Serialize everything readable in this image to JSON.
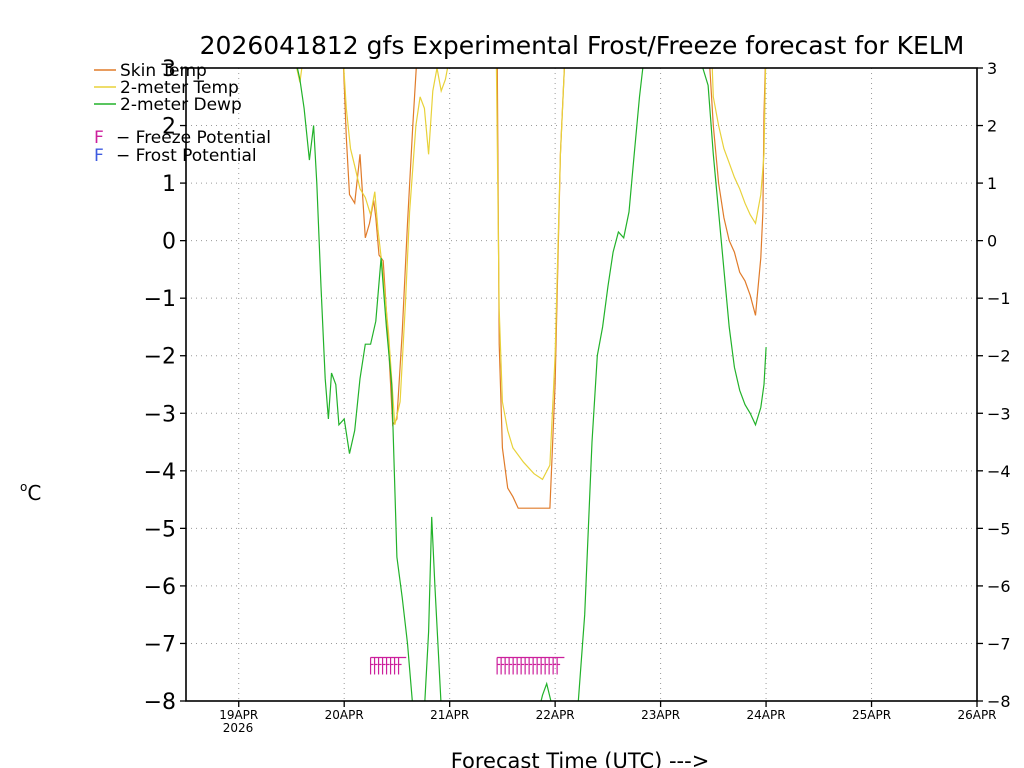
{
  "chart_data": {
    "type": "line",
    "title": "2026041812 gfs Experimental Frost/Freeze forecast for KELM",
    "xlabel": "Forecast Time (UTC) --->",
    "ylabel": "°C",
    "ylabel_superscript": "o",
    "ylabel_unit": "C",
    "ylim": [
      -8,
      3
    ],
    "xlim": [
      0,
      7.5
    ],
    "grid": true,
    "yticks": [
      3,
      2,
      1,
      0,
      -1,
      -2,
      -3,
      -4,
      -5,
      -6,
      -7,
      -8
    ],
    "ytick_labels": [
      "3",
      "2",
      "1",
      "0",
      "−1",
      "−2",
      "−3",
      "−4",
      "−5",
      "−6",
      "−7",
      "−8"
    ],
    "xticks": [
      0.5,
      1.5,
      2.5,
      3.5,
      4.5,
      5.5,
      6.5,
      7.5
    ],
    "xtick_labels": [
      "19APR",
      "20APR",
      "21APR",
      "22APR",
      "23APR",
      "24APR",
      "25APR",
      "26APR"
    ],
    "year_label": "2026",
    "series": [
      {
        "name": "Skin Temp",
        "color": "#e07b2a",
        "points": [
          [
            1.49,
            3.2
          ],
          [
            1.52,
            1.8
          ],
          [
            1.55,
            0.8
          ],
          [
            1.6,
            0.65
          ],
          [
            1.65,
            1.5
          ],
          [
            1.7,
            0.05
          ],
          [
            1.74,
            0.3
          ],
          [
            1.78,
            0.7
          ],
          [
            1.8,
            0.4
          ],
          [
            1.83,
            -0.25
          ],
          [
            1.87,
            -0.35
          ],
          [
            1.92,
            -1.8
          ],
          [
            1.96,
            -3.2
          ],
          [
            2.0,
            -3.1
          ],
          [
            2.05,
            -1.6
          ],
          [
            2.1,
            0.3
          ],
          [
            2.15,
            2.0
          ],
          [
            2.2,
            3.5
          ],
          [
            2.95,
            3.5
          ],
          [
            2.97,
            -1.8
          ],
          [
            3.0,
            -3.6
          ],
          [
            3.05,
            -4.3
          ],
          [
            3.1,
            -4.45
          ],
          [
            3.15,
            -4.65
          ],
          [
            3.2,
            -4.65
          ],
          [
            3.4,
            -4.65
          ],
          [
            3.45,
            -4.65
          ],
          [
            3.5,
            -2.5
          ],
          [
            3.55,
            1.5
          ],
          [
            3.6,
            3.5
          ],
          [
            4.95,
            3.5
          ],
          [
            5.0,
            2.0
          ],
          [
            5.05,
            1.0
          ],
          [
            5.1,
            0.4
          ],
          [
            5.15,
            0.0
          ],
          [
            5.2,
            -0.2
          ],
          [
            5.25,
            -0.55
          ],
          [
            5.3,
            -0.7
          ],
          [
            5.35,
            -0.95
          ],
          [
            5.4,
            -1.3
          ],
          [
            5.42,
            -0.9
          ],
          [
            5.45,
            -0.3
          ],
          [
            5.47,
            0.5
          ],
          [
            5.48,
            2.2
          ],
          [
            5.5,
            3.5
          ]
        ]
      },
      {
        "name": "2-meter Temp",
        "color": "#e8d23a",
        "points": [
          [
            1.0,
            3.3
          ],
          [
            1.05,
            3.0
          ],
          [
            1.08,
            2.75
          ],
          [
            1.12,
            3.3
          ],
          [
            1.49,
            3.2
          ],
          [
            1.52,
            2.3
          ],
          [
            1.56,
            1.6
          ],
          [
            1.6,
            1.3
          ],
          [
            1.65,
            0.9
          ],
          [
            1.7,
            0.75
          ],
          [
            1.75,
            0.45
          ],
          [
            1.79,
            0.85
          ],
          [
            1.82,
            0.2
          ],
          [
            1.86,
            -0.45
          ],
          [
            1.92,
            -1.6
          ],
          [
            1.98,
            -3.2
          ],
          [
            2.03,
            -2.8
          ],
          [
            2.08,
            -1.1
          ],
          [
            2.12,
            0.5
          ],
          [
            2.18,
            2.0
          ],
          [
            2.22,
            2.5
          ],
          [
            2.26,
            2.3
          ],
          [
            2.3,
            1.5
          ],
          [
            2.34,
            2.6
          ],
          [
            2.38,
            3.0
          ],
          [
            2.42,
            2.6
          ],
          [
            2.46,
            2.8
          ],
          [
            2.5,
            3.2
          ],
          [
            2.52,
            3.5
          ],
          [
            2.94,
            3.5
          ],
          [
            2.97,
            -1.2
          ],
          [
            3.0,
            -2.8
          ],
          [
            3.05,
            -3.3
          ],
          [
            3.1,
            -3.6
          ],
          [
            3.2,
            -3.85
          ],
          [
            3.3,
            -4.05
          ],
          [
            3.38,
            -4.15
          ],
          [
            3.45,
            -3.9
          ],
          [
            3.5,
            -2.0
          ],
          [
            3.55,
            1.5
          ],
          [
            3.6,
            3.5
          ],
          [
            4.98,
            3.5
          ],
          [
            5.0,
            2.5
          ],
          [
            5.05,
            2.0
          ],
          [
            5.1,
            1.6
          ],
          [
            5.15,
            1.35
          ],
          [
            5.2,
            1.1
          ],
          [
            5.25,
            0.9
          ],
          [
            5.3,
            0.65
          ],
          [
            5.35,
            0.45
          ],
          [
            5.4,
            0.3
          ],
          [
            5.45,
            0.8
          ],
          [
            5.48,
            1.5
          ],
          [
            5.5,
            3.5
          ]
        ]
      },
      {
        "name": "2-meter Dewp",
        "color": "#22b22a",
        "points": [
          [
            0.95,
            3.0
          ],
          [
            1.02,
            3.3
          ],
          [
            1.08,
            2.8
          ],
          [
            1.12,
            2.3
          ],
          [
            1.17,
            1.4
          ],
          [
            1.21,
            2.0
          ],
          [
            1.24,
            1.0
          ],
          [
            1.28,
            -0.8
          ],
          [
            1.32,
            -2.4
          ],
          [
            1.35,
            -3.1
          ],
          [
            1.38,
            -2.3
          ],
          [
            1.42,
            -2.5
          ],
          [
            1.45,
            -3.2
          ],
          [
            1.5,
            -3.1
          ],
          [
            1.55,
            -3.7
          ],
          [
            1.6,
            -3.3
          ],
          [
            1.65,
            -2.4
          ],
          [
            1.7,
            -1.8
          ],
          [
            1.75,
            -1.8
          ],
          [
            1.8,
            -1.4
          ],
          [
            1.85,
            -0.3
          ],
          [
            1.9,
            -1.5
          ],
          [
            1.95,
            -2.5
          ],
          [
            2.0,
            -5.5
          ],
          [
            2.05,
            -6.2
          ],
          [
            2.1,
            -7.0
          ],
          [
            2.15,
            -8.1
          ],
          [
            2.2,
            -8.5
          ],
          [
            2.25,
            -8.5
          ],
          [
            2.3,
            -6.8
          ],
          [
            2.33,
            -4.8
          ],
          [
            2.36,
            -6.0
          ],
          [
            2.42,
            -8.1
          ],
          [
            2.5,
            -8.5
          ],
          [
            3.3,
            -8.5
          ],
          [
            3.38,
            -7.9
          ],
          [
            3.42,
            -7.7
          ],
          [
            3.46,
            -8.0
          ],
          [
            3.55,
            -8.5
          ],
          [
            3.7,
            -8.5
          ],
          [
            3.78,
            -6.5
          ],
          [
            3.85,
            -3.5
          ],
          [
            3.9,
            -2.0
          ],
          [
            3.95,
            -1.5
          ],
          [
            4.0,
            -0.8
          ],
          [
            4.05,
            -0.2
          ],
          [
            4.1,
            0.15
          ],
          [
            4.15,
            0.05
          ],
          [
            4.2,
            0.5
          ],
          [
            4.25,
            1.5
          ],
          [
            4.3,
            2.5
          ],
          [
            4.35,
            3.3
          ],
          [
            4.85,
            3.3
          ],
          [
            4.9,
            3.0
          ],
          [
            4.95,
            2.7
          ],
          [
            5.0,
            1.5
          ],
          [
            5.05,
            0.5
          ],
          [
            5.1,
            -0.5
          ],
          [
            5.15,
            -1.5
          ],
          [
            5.2,
            -2.2
          ],
          [
            5.25,
            -2.6
          ],
          [
            5.3,
            -2.85
          ],
          [
            5.35,
            -3.0
          ],
          [
            5.4,
            -3.2
          ],
          [
            5.45,
            -2.9
          ],
          [
            5.48,
            -2.5
          ],
          [
            5.5,
            -1.85
          ]
        ]
      }
    ],
    "frost_freeze_markers": [
      {
        "x_start": 1.75,
        "x_end": 2.05,
        "value": -7.4,
        "type": "Freeze",
        "color": "#cc1f9c"
      },
      {
        "x_start": 2.95,
        "x_end": 3.55,
        "value": -7.4,
        "type": "Freeze",
        "color": "#cc1f9c"
      }
    ]
  },
  "legend": {
    "items": [
      {
        "label": "Skin Temp",
        "color": "#e07b2a"
      },
      {
        "label": "2-meter Temp",
        "color": "#e8d23a"
      },
      {
        "label": "2-meter Dewp",
        "color": "#22b22a"
      }
    ],
    "potential": [
      {
        "glyph": "F",
        "label": "− Freeze Potential",
        "color": "#cc1f9c"
      },
      {
        "glyph": "F",
        "label": "− Frost Potential",
        "color": "#3e5be0"
      }
    ]
  }
}
